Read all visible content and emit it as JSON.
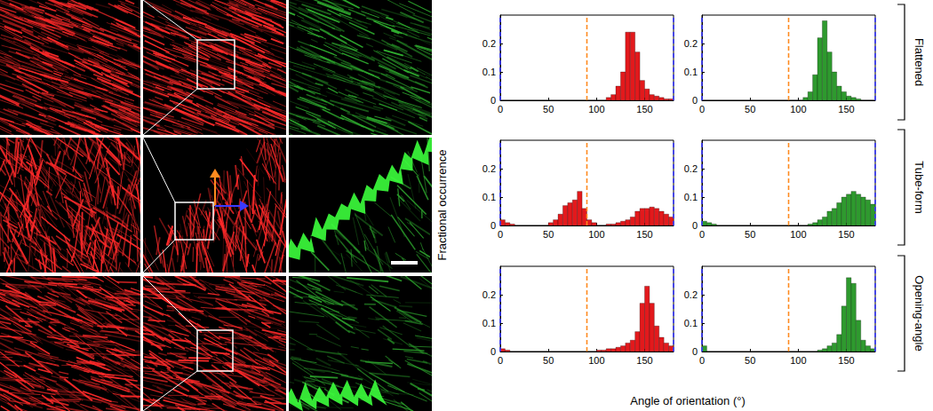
{
  "chart_data": [
    {
      "type": "histogram",
      "color": "#e3191c",
      "bins": [
        0,
        5,
        10,
        15,
        20,
        25,
        30,
        35,
        40,
        45,
        50,
        55,
        60,
        65,
        70,
        75,
        80,
        85,
        90,
        95,
        100,
        105,
        110,
        115,
        120,
        125,
        130,
        135,
        140,
        145,
        150,
        155,
        160,
        165,
        170,
        175,
        180
      ],
      "values": [
        0,
        0,
        0,
        0,
        0,
        0,
        0,
        0,
        0,
        0,
        0,
        0,
        0,
        0,
        0,
        0,
        0,
        0,
        0,
        0,
        0,
        0,
        0.01,
        0.02,
        0.05,
        0.1,
        0.24,
        0.24,
        0.17,
        0.07,
        0.04,
        0.02,
        0.015,
        0.01,
        0.005,
        0.005
      ],
      "xlim": [
        0,
        180
      ],
      "xticks": [
        0,
        50,
        100,
        150
      ],
      "ylim": [
        0,
        0.3
      ],
      "yticks": [
        0,
        0.1,
        0.2
      ],
      "grid": false,
      "reference_lines": [
        {
          "value": 0,
          "color": "#3a3aff",
          "line_style": "dashed"
        },
        {
          "value": 90,
          "color": "#ff8a1f",
          "line_style": "dashed"
        },
        {
          "value": 180,
          "color": "#3a3aff",
          "line_style": "dashed"
        }
      ]
    },
    {
      "type": "histogram",
      "color": "#2e9a2e",
      "bins": [
        0,
        5,
        10,
        15,
        20,
        25,
        30,
        35,
        40,
        45,
        50,
        55,
        60,
        65,
        70,
        75,
        80,
        85,
        90,
        95,
        100,
        105,
        110,
        115,
        120,
        125,
        130,
        135,
        140,
        145,
        150,
        155,
        160,
        165,
        170,
        175,
        180
      ],
      "values": [
        0,
        0,
        0,
        0,
        0,
        0,
        0,
        0,
        0,
        0,
        0,
        0,
        0,
        0,
        0,
        0,
        0,
        0,
        0,
        0,
        0,
        0.01,
        0.03,
        0.09,
        0.22,
        0.28,
        0.17,
        0.1,
        0.05,
        0.03,
        0.015,
        0.01,
        0.005,
        0,
        0,
        0
      ],
      "xlim": [
        0,
        180
      ],
      "xticks": [
        0,
        50,
        100,
        150
      ],
      "ylim": [
        0,
        0.3
      ],
      "yticks": [
        0,
        0.1,
        0.2
      ],
      "grid": false,
      "reference_lines": [
        {
          "value": 0,
          "color": "#3a3aff",
          "line_style": "dashed"
        },
        {
          "value": 90,
          "color": "#ff8a1f",
          "line_style": "dashed"
        },
        {
          "value": 180,
          "color": "#3a3aff",
          "line_style": "dashed"
        }
      ]
    },
    {
      "type": "histogram",
      "color": "#e3191c",
      "bins": [
        0,
        5,
        10,
        15,
        20,
        25,
        30,
        35,
        40,
        45,
        50,
        55,
        60,
        65,
        70,
        75,
        80,
        85,
        90,
        95,
        100,
        105,
        110,
        115,
        120,
        125,
        130,
        135,
        140,
        145,
        150,
        155,
        160,
        165,
        170,
        175,
        180
      ],
      "values": [
        0.02,
        0.01,
        0.005,
        0,
        0,
        0,
        0,
        0,
        0,
        0,
        0.01,
        0.02,
        0.04,
        0.07,
        0.08,
        0.09,
        0.12,
        0.06,
        0.02,
        0.01,
        0,
        0,
        0.005,
        0.005,
        0.01,
        0.015,
        0.02,
        0.03,
        0.05,
        0.06,
        0.06,
        0.065,
        0.06,
        0.05,
        0.04,
        0.03
      ],
      "xlim": [
        0,
        180
      ],
      "xticks": [
        0,
        50,
        100,
        150
      ],
      "ylim": [
        0,
        0.3
      ],
      "yticks": [
        0,
        0.1,
        0.2
      ],
      "grid": false,
      "reference_lines": [
        {
          "value": 0,
          "color": "#3a3aff",
          "line_style": "dashed"
        },
        {
          "value": 90,
          "color": "#ff8a1f",
          "line_style": "dashed"
        },
        {
          "value": 180,
          "color": "#3a3aff",
          "line_style": "dashed"
        }
      ]
    },
    {
      "type": "histogram",
      "color": "#2e9a2e",
      "bins": [
        0,
        5,
        10,
        15,
        20,
        25,
        30,
        35,
        40,
        45,
        50,
        55,
        60,
        65,
        70,
        75,
        80,
        85,
        90,
        95,
        100,
        105,
        110,
        115,
        120,
        125,
        130,
        135,
        140,
        145,
        150,
        155,
        160,
        165,
        170,
        175,
        180
      ],
      "values": [
        0.015,
        0.01,
        0.005,
        0,
        0,
        0,
        0,
        0,
        0,
        0,
        0,
        0,
        0,
        0,
        0,
        0,
        0,
        0,
        0,
        0,
        0,
        0,
        0.005,
        0.01,
        0.02,
        0.03,
        0.05,
        0.06,
        0.08,
        0.1,
        0.11,
        0.12,
        0.11,
        0.1,
        0.09,
        0.075
      ],
      "xlim": [
        0,
        180
      ],
      "xticks": [
        0,
        50,
        100,
        150
      ],
      "ylim": [
        0,
        0.3
      ],
      "yticks": [
        0,
        0.1,
        0.2
      ],
      "grid": false,
      "reference_lines": [
        {
          "value": 0,
          "color": "#3a3aff",
          "line_style": "dashed"
        },
        {
          "value": 90,
          "color": "#ff8a1f",
          "line_style": "dashed"
        },
        {
          "value": 180,
          "color": "#3a3aff",
          "line_style": "dashed"
        }
      ]
    },
    {
      "type": "histogram",
      "color": "#e3191c",
      "bins": [
        0,
        5,
        10,
        15,
        20,
        25,
        30,
        35,
        40,
        45,
        50,
        55,
        60,
        65,
        70,
        75,
        80,
        85,
        90,
        95,
        100,
        105,
        110,
        115,
        120,
        125,
        130,
        135,
        140,
        145,
        150,
        155,
        160,
        165,
        170,
        175,
        180
      ],
      "values": [
        0.01,
        0.005,
        0,
        0,
        0,
        0,
        0,
        0,
        0,
        0,
        0,
        0,
        0,
        0,
        0,
        0,
        0,
        0,
        0,
        0,
        0.005,
        0.005,
        0.01,
        0.01,
        0.015,
        0.02,
        0.03,
        0.04,
        0.07,
        0.17,
        0.23,
        0.17,
        0.09,
        0.05,
        0.03,
        0.02
      ],
      "xlim": [
        0,
        180
      ],
      "xticks": [
        0,
        50,
        100,
        150
      ],
      "ylim": [
        0,
        0.3
      ],
      "yticks": [
        0,
        0.1,
        0.2
      ],
      "grid": false,
      "reference_lines": [
        {
          "value": 0,
          "color": "#3a3aff",
          "line_style": "dashed"
        },
        {
          "value": 90,
          "color": "#ff8a1f",
          "line_style": "dashed"
        },
        {
          "value": 180,
          "color": "#3a3aff",
          "line_style": "dashed"
        }
      ]
    },
    {
      "type": "histogram",
      "color": "#2e9a2e",
      "bins": [
        0,
        5,
        10,
        15,
        20,
        25,
        30,
        35,
        40,
        45,
        50,
        55,
        60,
        65,
        70,
        75,
        80,
        85,
        90,
        95,
        100,
        105,
        110,
        115,
        120,
        125,
        130,
        135,
        140,
        145,
        150,
        155,
        160,
        165,
        170,
        175,
        180
      ],
      "values": [
        0.02,
        0,
        0,
        0,
        0,
        0,
        0,
        0,
        0,
        0,
        0,
        0,
        0,
        0,
        0,
        0,
        0,
        0,
        0,
        0,
        0,
        0,
        0,
        0,
        0.005,
        0.01,
        0.02,
        0.03,
        0.06,
        0.16,
        0.26,
        0.24,
        0.11,
        0.04,
        0.02,
        0.01
      ],
      "xlim": [
        0,
        180
      ],
      "xticks": [
        0,
        50,
        100,
        150
      ],
      "ylim": [
        0,
        0.3
      ],
      "yticks": [
        0,
        0.1,
        0.2
      ],
      "grid": false,
      "reference_lines": [
        {
          "value": 0,
          "color": "#3a3aff",
          "line_style": "dashed"
        },
        {
          "value": 90,
          "color": "#ff8a1f",
          "line_style": "dashed"
        },
        {
          "value": 180,
          "color": "#3a3aff",
          "line_style": "dashed"
        }
      ]
    }
  ],
  "figure": {
    "ylabel": "Fractional occurrence",
    "xlabel": "Angle of orientation (°)",
    "row_labels": [
      "Flattened",
      "Tube-form",
      "Opening-angle"
    ]
  }
}
